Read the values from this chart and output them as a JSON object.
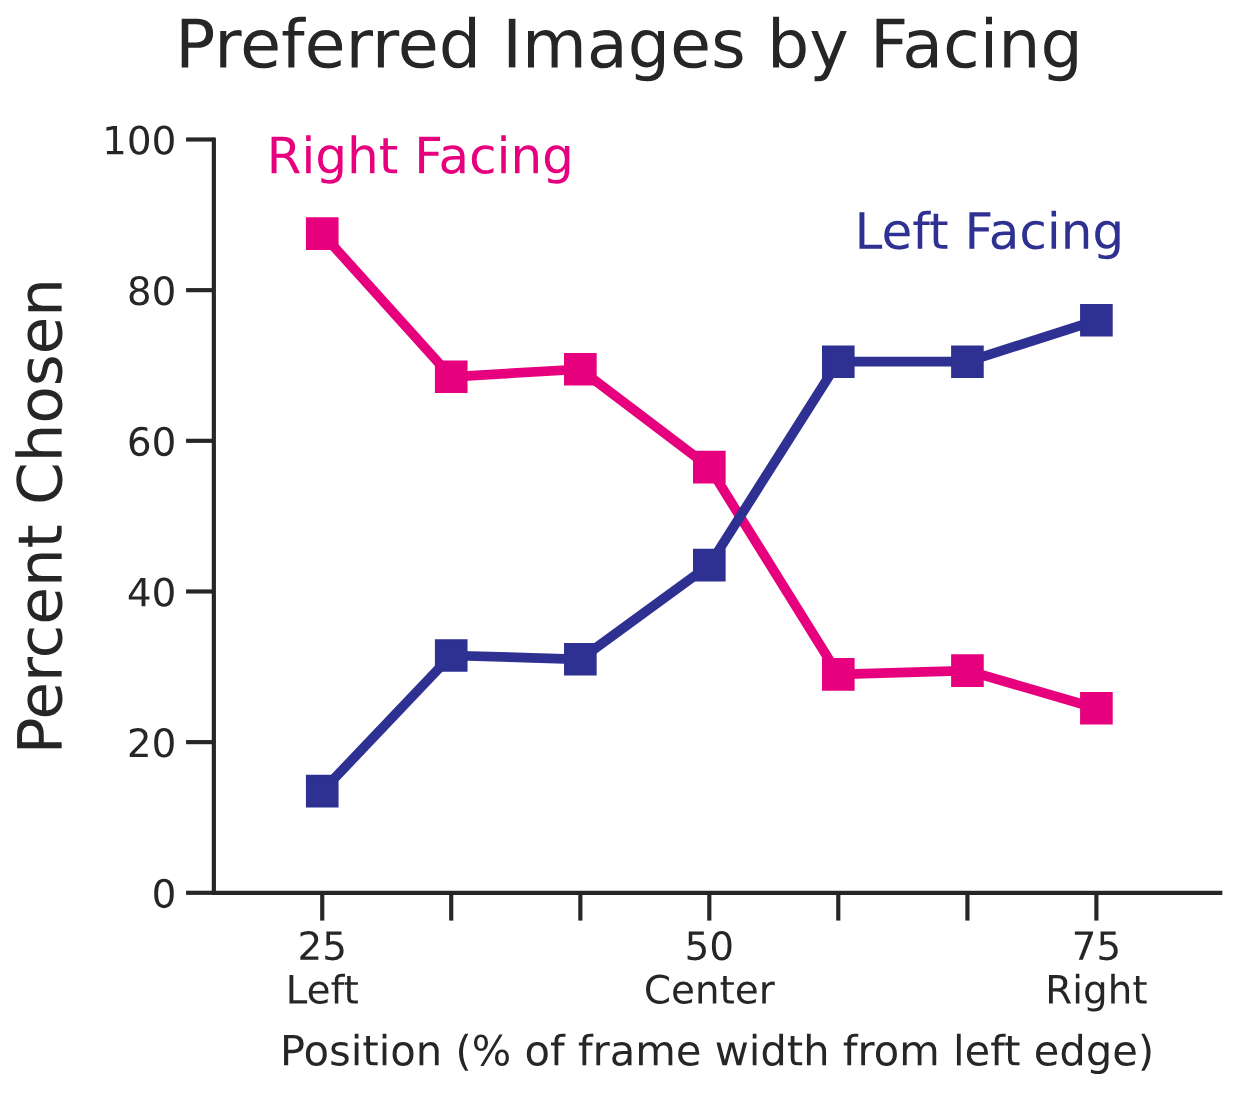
{
  "chart_data": {
    "type": "line",
    "title": "Preferred Images by Facing",
    "xlabel": "Position (% of frame width from left edge)",
    "ylabel": "Percent Chosen",
    "x": [
      25,
      33.33,
      41.67,
      50,
      58.33,
      66.67,
      75
    ],
    "series": [
      {
        "name": "Right Facing",
        "color": "#e6007e",
        "values": [
          87.5,
          68.5,
          69.5,
          56.5,
          29,
          29.5,
          24.5
        ]
      },
      {
        "name": "Left Facing",
        "color": "#2e3192",
        "values": [
          13.5,
          31.5,
          31,
          43.5,
          70.5,
          70.5,
          76
        ]
      }
    ],
    "xlim": [
      18,
      83
    ],
    "xticks": [
      {
        "value": 25,
        "label": "25\nLeft"
      },
      {
        "value": 33.33,
        "label": null
      },
      {
        "value": 41.67,
        "label": null
      },
      {
        "value": 50,
        "label": "50\nCenter"
      },
      {
        "value": 58.33,
        "label": null
      },
      {
        "value": 66.67,
        "label": null
      },
      {
        "value": 75,
        "label": "75\nRight"
      }
    ],
    "ylim": [
      0,
      100
    ],
    "yticks": [
      0,
      20,
      40,
      60,
      80,
      100
    ],
    "grid": false,
    "legend": false,
    "marker": "square",
    "line_style": "solid"
  }
}
